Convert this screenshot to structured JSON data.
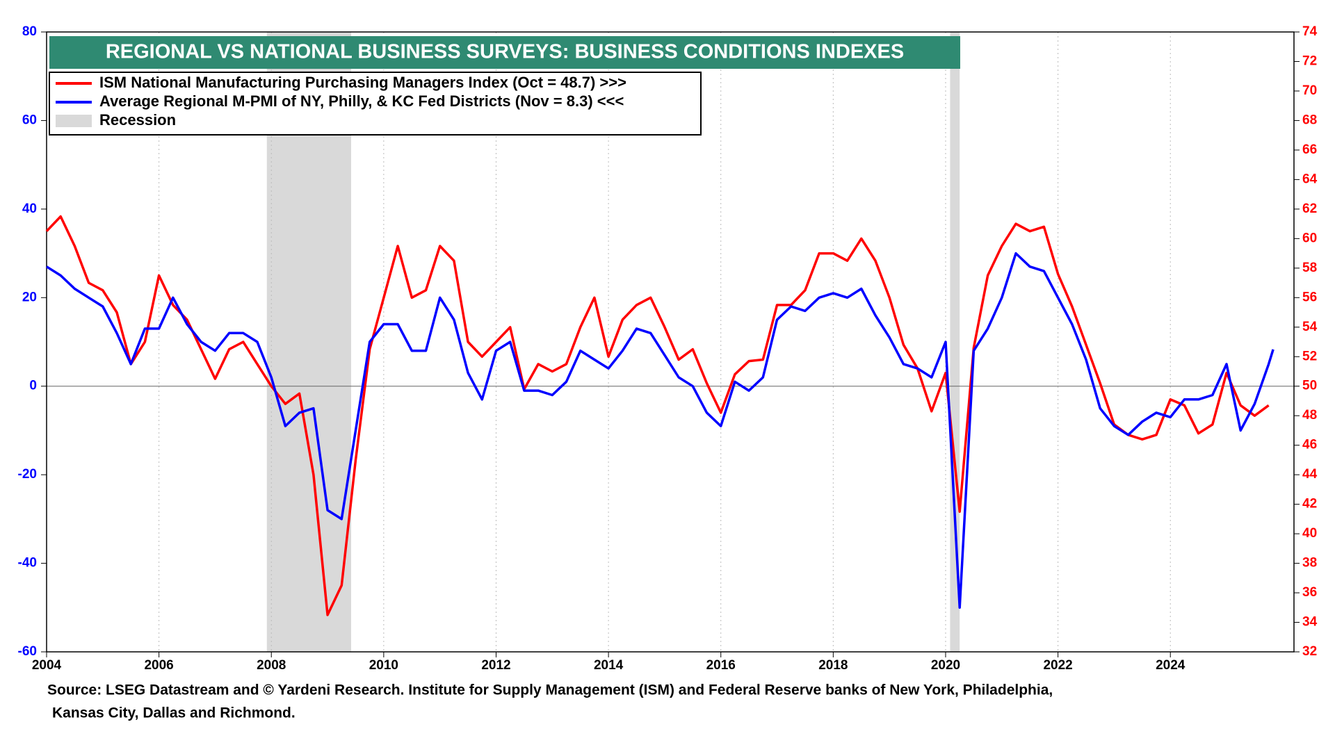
{
  "chart_data": {
    "type": "line",
    "title": "REGIONAL VS NATIONAL BUSINESS SURVEYS: BUSINESS CONDITIONS INDEXES",
    "x": [
      2004.0,
      2004.25,
      2004.5,
      2004.75,
      2005.0,
      2005.25,
      2005.5,
      2005.75,
      2006.0,
      2006.25,
      2006.5,
      2006.75,
      2007.0,
      2007.25,
      2007.5,
      2007.75,
      2008.0,
      2008.25,
      2008.5,
      2008.75,
      2009.0,
      2009.25,
      2009.5,
      2009.75,
      2010.0,
      2010.25,
      2010.5,
      2010.75,
      2011.0,
      2011.25,
      2011.5,
      2011.75,
      2012.0,
      2012.25,
      2012.5,
      2012.75,
      2013.0,
      2013.25,
      2013.5,
      2013.75,
      2014.0,
      2014.25,
      2014.5,
      2014.75,
      2015.0,
      2015.25,
      2015.5,
      2015.75,
      2016.0,
      2016.25,
      2016.5,
      2016.75,
      2017.0,
      2017.25,
      2017.5,
      2017.75,
      2018.0,
      2018.25,
      2018.5,
      2018.75,
      2019.0,
      2019.25,
      2019.5,
      2019.75,
      2020.0,
      2020.25,
      2020.5,
      2020.75,
      2021.0,
      2021.25,
      2021.5,
      2021.75,
      2022.0,
      2022.25,
      2022.5,
      2022.75,
      2023.0,
      2023.25,
      2023.5,
      2023.75,
      2024.0,
      2024.25,
      2024.5,
      2024.75,
      2025.0,
      2025.25,
      2025.5,
      2025.75,
      2025.83
    ],
    "series": [
      {
        "name": "ISM National Manufacturing Purchasing Managers Index (Oct = 48.7) >>>",
        "color": "#ff0000",
        "axis": "y2",
        "values": [
          60.5,
          61.5,
          59.5,
          57,
          56.5,
          55,
          51.5,
          53,
          57.5,
          55.5,
          54.5,
          52.5,
          50.5,
          52.5,
          53,
          51.5,
          50,
          48.8,
          49.5,
          44,
          34.5,
          36.5,
          45,
          52.5,
          56,
          59.5,
          56,
          56.5,
          59.5,
          58.5,
          53,
          52,
          53,
          54,
          49.8,
          51.5,
          51,
          51.5,
          54,
          56,
          52,
          54.5,
          55.5,
          56,
          54,
          51.8,
          52.5,
          50.2,
          48.2,
          50.8,
          51.7,
          51.8,
          55.5,
          55.5,
          56.5,
          59,
          59,
          58.5,
          60,
          58.5,
          56,
          52.8,
          51.2,
          48.3,
          50.9,
          41.5,
          52.6,
          57.5,
          59.5,
          61,
          60.5,
          60.8,
          57.6,
          55.4,
          52.8,
          50.2,
          47.4,
          46.7,
          46.4,
          46.7,
          49.1,
          48.7,
          46.8,
          47.4,
          50.9,
          48.7,
          48.0,
          48.7,
          null
        ]
      },
      {
        "name": "Average Regional M-PMI of NY, Philly, & KC Fed Districts (Nov = 8.3) <<<",
        "color": "#0000ff",
        "axis": "y",
        "values": [
          27,
          25,
          22,
          20,
          18,
          12,
          5,
          13,
          13,
          20,
          14,
          10,
          8,
          12,
          12,
          10,
          2,
          -9,
          -6,
          -5,
          -28,
          -30,
          -10,
          10,
          14,
          14,
          8,
          8,
          20,
          15,
          3,
          -3,
          8,
          10,
          -1,
          -1,
          -2,
          1,
          8,
          6,
          4,
          8,
          13,
          12,
          7,
          2,
          0,
          -6,
          -9,
          1,
          -1,
          2,
          15,
          18,
          17,
          20,
          21,
          20,
          22,
          16,
          11,
          5,
          4,
          2,
          10,
          -50,
          8,
          13,
          20,
          30,
          27,
          26,
          20,
          14,
          6,
          -5,
          -9,
          -11,
          -8,
          -6,
          -7,
          -3,
          -3,
          -2,
          5,
          -10,
          -4,
          5,
          8.3
        ]
      }
    ],
    "recession_label": "Recession",
    "recessions": [
      [
        2007.92,
        2009.42
      ],
      [
        2020.08,
        2020.25
      ]
    ],
    "xlim": [
      2004,
      2026.2
    ],
    "xticks": [
      2004,
      2006,
      2008,
      2010,
      2012,
      2014,
      2016,
      2018,
      2020,
      2022,
      2024
    ],
    "ylim": [
      -60,
      80
    ],
    "yticks": [
      -60,
      -40,
      -20,
      0,
      20,
      40,
      60,
      80
    ],
    "y2lim": [
      32,
      74
    ],
    "y2ticks": [
      32,
      34,
      36,
      38,
      40,
      42,
      44,
      46,
      48,
      50,
      52,
      54,
      56,
      58,
      60,
      62,
      64,
      66,
      68,
      70,
      72,
      74
    ],
    "grid": true,
    "source": [
      "Source: LSEG Datastream and © Yardeni Research. Institute for Supply Management (ISM) and Federal Reserve banks of New York, Philadelphia,",
      "Kansas City, Dallas and Richmond."
    ]
  }
}
